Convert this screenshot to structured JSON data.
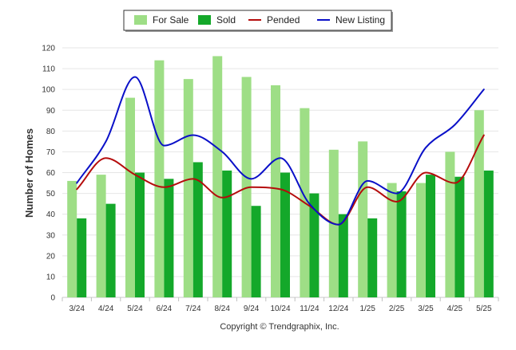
{
  "chart_data": {
    "type": "bar",
    "categories": [
      "3/24",
      "4/24",
      "5/24",
      "6/24",
      "7/24",
      "8/24",
      "9/24",
      "10/24",
      "11/24",
      "12/24",
      "1/25",
      "2/25",
      "3/25",
      "4/25",
      "5/25"
    ],
    "series": [
      {
        "name": "For Sale",
        "type": "bar",
        "color": "#9ede86",
        "values": [
          56,
          59,
          96,
          114,
          105,
          116,
          106,
          102,
          91,
          71,
          75,
          55,
          55,
          70,
          90
        ]
      },
      {
        "name": "Sold",
        "type": "bar",
        "color": "#14a82a",
        "values": [
          38,
          45,
          60,
          57,
          65,
          61,
          44,
          60,
          50,
          40,
          38,
          51,
          59,
          58,
          61
        ]
      },
      {
        "name": "Pended",
        "type": "line",
        "color": "#b50c0c",
        "values": [
          52,
          67,
          59,
          53,
          57,
          48,
          53,
          52,
          44,
          35,
          53,
          46,
          60,
          55,
          78
        ]
      },
      {
        "name": "New Listing",
        "type": "line",
        "color": "#0a10c8",
        "values": [
          55,
          75,
          106,
          73,
          78,
          70,
          57,
          67,
          45,
          35,
          56,
          50,
          72,
          83,
          100
        ]
      }
    ],
    "xlabel": "",
    "ylabel": "Number of Homes",
    "ylim": [
      0,
      120
    ],
    "yticks": [
      0,
      10,
      20,
      30,
      40,
      50,
      60,
      70,
      80,
      90,
      100,
      110,
      120
    ],
    "grid": true,
    "legend_position": "top-center"
  },
  "credit": "Copyright © Trendgraphix, Inc."
}
